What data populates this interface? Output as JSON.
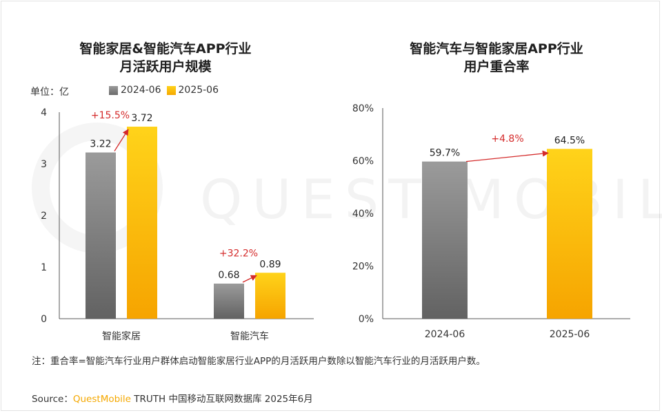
{
  "watermark_text": "QUEST MOBILE",
  "note": "注：重合率=智能汽车行业用户群体启动智能家居行业APP的月活跃用户数除以智能汽车行业的月活跃用户数。",
  "source": {
    "prefix": "Source：",
    "brand": "QuestMobile",
    "suffix": " TRUTH 中国移动互联网数据库 2025年6月"
  },
  "colors": {
    "gray": "#7f7f7f",
    "gold": "#ffc20e",
    "arrow": "#d42a2a"
  },
  "chart_data": [
    {
      "type": "bar",
      "title_line1": "智能家居&智能汽车APP行业",
      "title_line2": "月活跃用户规模",
      "unit_label": "单位：亿",
      "categories": [
        "智能家居",
        "智能汽车"
      ],
      "series": [
        {
          "name": "2024-06",
          "values": [
            3.22,
            0.68
          ],
          "labels": [
            "3.22",
            "0.68"
          ]
        },
        {
          "name": "2025-06",
          "values": [
            3.72,
            0.89
          ],
          "labels": [
            "3.72",
            "0.89"
          ]
        }
      ],
      "growth": [
        "+15.5%",
        "+32.2%"
      ],
      "ylim": [
        0,
        4
      ],
      "yticks": [
        "0",
        "1",
        "2",
        "3",
        "4"
      ],
      "legend": "top"
    },
    {
      "type": "bar",
      "title_line1": "智能汽车与智能家居APP行业",
      "title_line2": "用户重合率",
      "categories": [
        "2024-06",
        "2025-06"
      ],
      "values": [
        59.7,
        64.5
      ],
      "labels": [
        "59.7%",
        "64.5%"
      ],
      "growth": "+4.8%",
      "ylim": [
        0,
        80
      ],
      "yticks": [
        "0%",
        "20%",
        "40%",
        "60%",
        "80%"
      ]
    }
  ]
}
